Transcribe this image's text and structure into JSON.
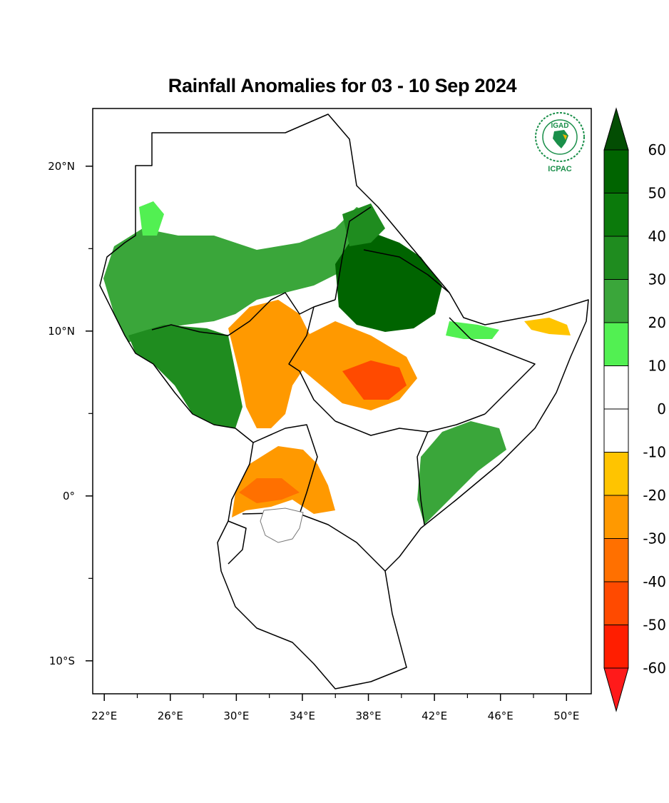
{
  "title": "Rainfall Anomalies for 03 - 10 Sep 2024",
  "logo": {
    "top_text": "IGAD",
    "bottom_text": "ICPAC",
    "colors": {
      "primary": "#1a8f4a",
      "accent": "#f2b700"
    }
  },
  "map": {
    "lon_range": [
      21.3,
      51.5
    ],
    "lat_range": [
      -12,
      23.5
    ],
    "x_ticks": [
      {
        "value": 22,
        "label": "22°E"
      },
      {
        "value": 26,
        "label": "26°E"
      },
      {
        "value": 30,
        "label": "30°E"
      },
      {
        "value": 34,
        "label": "34°E"
      },
      {
        "value": 38,
        "label": "38°E"
      },
      {
        "value": 42,
        "label": "42°E"
      },
      {
        "value": 46,
        "label": "46°E"
      },
      {
        "value": 50,
        "label": "50°E"
      }
    ],
    "y_ticks": [
      {
        "value": 20,
        "label": "20°N"
      },
      {
        "value": 10,
        "label": "10°N"
      },
      {
        "value": 0,
        "label": "0°"
      },
      {
        "value": -10,
        "label": "10°S"
      }
    ],
    "colorbar": {
      "levels": [
        "60",
        "50",
        "40",
        "30",
        "20",
        "10",
        "0",
        "-10",
        "-20",
        "-30",
        "-40",
        "-50",
        "-60"
      ],
      "colors": [
        "#006400",
        "#0b7a0b",
        "#1f8c1f",
        "#3aa63a",
        "#52f052",
        "#ffffff",
        "#ffffff",
        "#ffc400",
        "#ff9900",
        "#ff7000",
        "#ff4a00",
        "#ff1e00"
      ],
      "top_arrow": "#034d03",
      "bottom_arrow": "#ff1a1a"
    }
  }
}
